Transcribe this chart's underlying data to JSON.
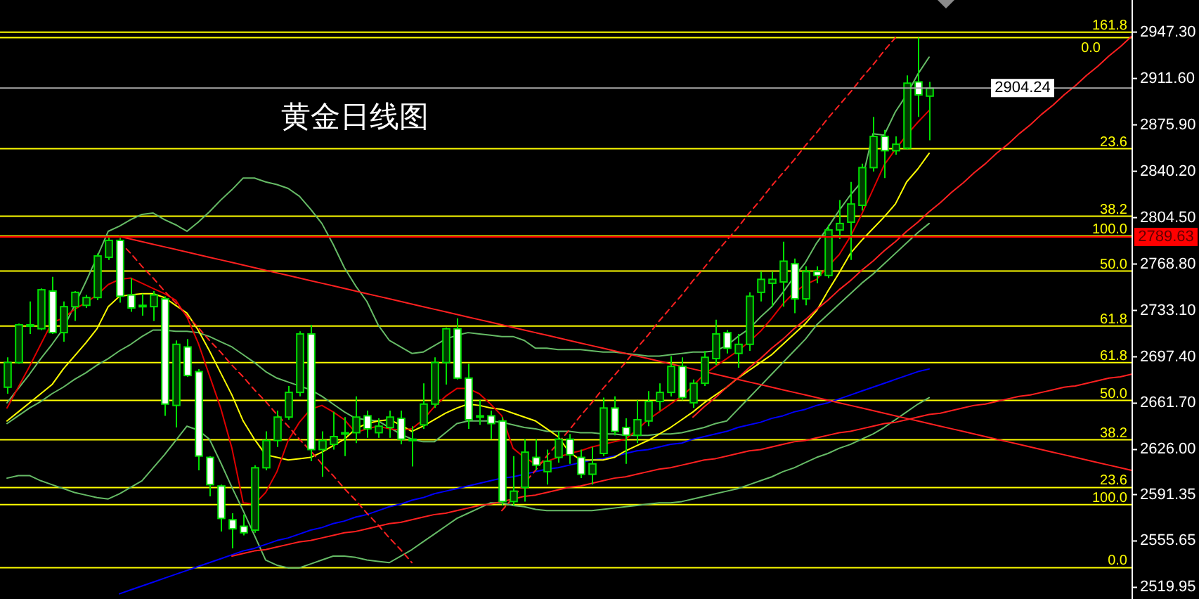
{
  "chart_data": {
    "type": "candlestick",
    "title": "黄金日线图",
    "categories": [
      null,
      null,
      null,
      null,
      null,
      null,
      null,
      null,
      null,
      null,
      null,
      null,
      null,
      null,
      null,
      null,
      null,
      null,
      null,
      null,
      null,
      null,
      null,
      null,
      null,
      null,
      null,
      null,
      null,
      null,
      null,
      null,
      null,
      null,
      null,
      null,
      null,
      null,
      null,
      null,
      null,
      null,
      null,
      null,
      null,
      null,
      null,
      null,
      null,
      null,
      null,
      null,
      null,
      null,
      null,
      null,
      null,
      null,
      null,
      null,
      null,
      null,
      null,
      null,
      null,
      null,
      null,
      null,
      null,
      null,
      null,
      null,
      null,
      null,
      null,
      null,
      null,
      null,
      null,
      null,
      null,
      null,
      null,
      null,
      null,
      null,
      null,
      null,
      null,
      null,
      null,
      null,
      null,
      null,
      null,
      null,
      null,
      null,
      null,
      null,
      null
    ],
    "ylim": [
      2511,
      2972
    ],
    "yticks": [
      {
        "value": 2947.3,
        "label": "2947.30"
      },
      {
        "value": 2911.6,
        "label": "2911.60"
      },
      {
        "value": 2875.9,
        "label": "2875.90"
      },
      {
        "value": 2840.2,
        "label": "2840.20"
      },
      {
        "value": 2804.5,
        "label": "2804.50"
      },
      {
        "value": 2768.8,
        "label": "2768.80"
      },
      {
        "value": 2733.1,
        "label": "2733.10"
      },
      {
        "value": 2697.4,
        "label": "2697.40"
      },
      {
        "value": 2661.7,
        "label": "2661.70"
      },
      {
        "value": 2626,
        "label": "2626.00"
      },
      {
        "value": 2591.35,
        "label": "2591.35"
      },
      {
        "value": 2555.65,
        "label": "2555.65"
      },
      {
        "value": 2519.95,
        "label": "2519.95"
      }
    ],
    "tick_labels": "y",
    "series": [
      {
        "type": "line",
        "color": "#66bb66",
        "values": [
          2604,
          2606,
          2606,
          2602,
          2599,
          2596,
          2593,
          2591,
          2589,
          2588,
          2592,
          2597,
          2602,
          2612,
          2622,
          2633,
          2644,
          2641,
          2634,
          2616,
          2597,
          2579,
          2560,
          2541,
          2537,
          2535,
          2535,
          2538,
          2541,
          2544,
          2544,
          2543,
          2541,
          2540,
          2539,
          2544,
          2549,
          2555,
          2561,
          2567,
          2573,
          2577,
          2581,
          2585,
          2585,
          2583,
          2582,
          2580,
          2579,
          2579,
          2579,
          2579,
          2579,
          2580,
          2581,
          2582,
          2583,
          2584,
          2585,
          2585,
          2586,
          2588,
          2590,
          2592,
          2594,
          2596,
          2599,
          2602,
          2605,
          2609,
          2612,
          2616,
          2620,
          2623,
          2627,
          2630,
          2634,
          2638,
          2643,
          2649,
          2655,
          2661,
          2666,
          null,
          null,
          null,
          null,
          null,
          null,
          null,
          null,
          null,
          null,
          null,
          null,
          null,
          null,
          null,
          null,
          null,
          null
        ]
      },
      {
        "type": "line",
        "color": "#66bb66",
        "values": [
          2646,
          2652,
          2658,
          2663,
          2669,
          2674,
          2680,
          2685,
          2691,
          2696,
          2702,
          2707,
          2713,
          2718,
          2718,
          2717,
          2717,
          2716,
          2713,
          2709,
          2705,
          2699,
          2693,
          2686,
          2681,
          2678,
          2675,
          2672,
          2667,
          2661,
          2655,
          2650,
          2649,
          2648,
          2643,
          2638,
          2634,
          2632,
          2632,
          2639,
          2646,
          2648,
          2648,
          2648,
          2647,
          2645,
          2643,
          2642,
          2640,
          2640,
          2640,
          2639,
          2639,
          2638,
          2638,
          2637,
          2637,
          2637,
          2638,
          2638,
          2639,
          2641,
          2643,
          2646,
          2648,
          2657,
          2666,
          2675,
          2684,
          2693,
          2702,
          2711,
          2722,
          2730,
          2738,
          2746,
          2754,
          2761,
          2769,
          2777,
          2785,
          2793,
          2800,
          null,
          null,
          null,
          null,
          null,
          null,
          null,
          null,
          null,
          null,
          null,
          null,
          null,
          null,
          null,
          null,
          null,
          null
        ]
      },
      {
        "type": "line",
        "color": "#66bb66",
        "values": [
          2662,
          2673,
          2684,
          2696,
          2707,
          2719,
          2737,
          2755,
          2774,
          2794,
          2798,
          2803,
          2807,
          2808,
          2803,
          2799,
          2794,
          2801,
          2809,
          2818,
          2826,
          2835,
          2835,
          2832,
          2830,
          2827,
          2821,
          2811,
          2800,
          2784,
          2766,
          2752,
          2740,
          2722,
          2710,
          2705,
          2700,
          2701,
          2706,
          2711,
          2714,
          2716,
          2715,
          2714,
          2713,
          2713,
          2710,
          2704,
          2704,
          2703,
          2703,
          2703,
          2702,
          2701,
          2701,
          2700,
          2699,
          2698,
          2698,
          2699,
          2700,
          2701,
          2701,
          2702,
          2706,
          2713,
          2719,
          2728,
          2736,
          2747,
          2759,
          2770,
          2785,
          2797,
          2810,
          2822,
          2832,
          2869,
          2868,
          2886,
          2899,
          2915,
          2928,
          null,
          null,
          null,
          null,
          null,
          null,
          null,
          null,
          null,
          null,
          null,
          null,
          null,
          null,
          null,
          null,
          null,
          null
        ]
      },
      {
        "type": "line",
        "color": "#0000ff",
        "values": [
          null,
          null,
          null,
          null,
          null,
          null,
          null,
          null,
          null,
          null,
          2515,
          2518,
          2521,
          2524,
          2527,
          2530,
          2533,
          2536,
          2539,
          2542,
          2545,
          2548,
          2550,
          2553,
          2556,
          2558,
          2561,
          2564,
          2566,
          2569,
          2571,
          2574,
          2576,
          2579,
          2582,
          2584,
          2587,
          2589,
          2592,
          2594,
          2596,
          2598,
          2600,
          2602,
          2604,
          2605,
          2607,
          2609,
          2611,
          2612,
          2614,
          2616,
          2618,
          2619,
          2621,
          2623,
          2625,
          2626,
          2628,
          2630,
          2631,
          2634,
          2636,
          2638,
          2640,
          2643,
          2645,
          2647,
          2650,
          2652,
          2655,
          2657,
          2660,
          2662,
          2665,
          2668,
          2671,
          2674,
          2677,
          2680,
          2683,
          2686,
          2688,
          null,
          null,
          null,
          null,
          null,
          null,
          null,
          null,
          null,
          null,
          null,
          null,
          null,
          null,
          null,
          null,
          null,
          null
        ]
      },
      {
        "type": "line",
        "color": "#ffff00",
        "values": [
          2648,
          2655,
          2662,
          2669,
          2676,
          2688,
          2698,
          2708,
          2719,
          2736,
          2744,
          2745,
          2746,
          2746,
          2743,
          2737,
          2731,
          2718,
          2702,
          2685,
          2668,
          2648,
          2634,
          2622,
          2620,
          2618,
          2619,
          2620,
          2624,
          2629,
          2634,
          2642,
          2646,
          2648,
          2649,
          2645,
          2640,
          2644,
          2649,
          2654,
          2658,
          2661,
          2660,
          2658,
          2657,
          2654,
          2651,
          2648,
          2642,
          2636,
          2624,
          2618,
          2618,
          2618,
          2620,
          2625,
          2629,
          2633,
          2638,
          2643,
          2649,
          2655,
          2662,
          2668,
          2674,
          2681,
          2687,
          2693,
          2699,
          2707,
          2715,
          2723,
          2733,
          2748,
          2762,
          2777,
          2787,
          2796,
          2805,
          2815,
          2832,
          2842,
          2854,
          null,
          null,
          null,
          null,
          null,
          null,
          null,
          null,
          null,
          null,
          null,
          null,
          null,
          null,
          null,
          null,
          null,
          null
        ]
      },
      {
        "type": "line",
        "color": "#e00000",
        "values": [
          2658,
          2674,
          2690,
          2707,
          2724,
          2727,
          2734,
          2739,
          2745,
          2753,
          2757,
          2758,
          2754,
          2750,
          2746,
          2741,
          2728,
          2708,
          2683,
          2658,
          2627,
          2585,
          2584,
          2593,
          2609,
          2633,
          2647,
          2657,
          2660,
          2655,
          2649,
          2639,
          2642,
          2644,
          2642,
          2641,
          2642,
          2649,
          2659,
          2667,
          2673,
          2673,
          2669,
          2661,
          2652,
          2627,
          2620,
          2615,
          2617,
          2620,
          2623,
          2625,
          2628,
          2630,
          2632,
          2634,
          2641,
          2649,
          2655,
          2661,
          2667,
          2675,
          2684,
          2690,
          2696,
          2702,
          2709,
          2717,
          2727,
          2738,
          2747,
          2753,
          2757,
          2767,
          2776,
          2790,
          2807,
          2826,
          2845,
          2857,
          2868,
          2878,
          2887,
          null,
          null,
          null,
          null,
          null,
          null,
          null,
          null,
          null,
          null,
          null,
          null,
          null,
          null,
          null,
          null,
          null,
          null
        ]
      },
      {
        "type": "line",
        "color": "#ff2020",
        "values": [
          null,
          null,
          null,
          null,
          null,
          null,
          null,
          null,
          null,
          null,
          2790,
          2788,
          2786,
          2784,
          2782,
          2780,
          2778,
          2776,
          2774,
          2772,
          2770,
          2768,
          2766,
          2764,
          2762,
          2760,
          2758,
          2756,
          2754,
          2752,
          2750,
          2748,
          2746,
          2744,
          2742,
          2740,
          2738,
          2736,
          2734,
          2732,
          2730,
          2728,
          2726,
          2724,
          2722,
          2720,
          2718,
          2716,
          2714,
          2712,
          2710,
          2708,
          2706,
          2704,
          2702,
          2700,
          2698,
          2696,
          2694,
          2692,
          2690,
          2688,
          2686,
          2684,
          2682,
          2680,
          2678,
          2676,
          2674,
          2672,
          2670,
          2668,
          2666,
          2664,
          2662,
          2660,
          2658,
          2656,
          2654,
          2652,
          2650,
          2648,
          2646,
          2644,
          2642,
          2640,
          2638,
          2636,
          2634,
          2632,
          2630,
          2628,
          2626,
          2624,
          2622,
          2620,
          2618,
          2616,
          2614,
          2612,
          2610
        ]
      },
      {
        "type": "line",
        "color": "#ff2020",
        "values": [
          null,
          null,
          null,
          null,
          null,
          null,
          null,
          null,
          null,
          null,
          null,
          null,
          null,
          null,
          null,
          null,
          null,
          null,
          null,
          null,
          2544,
          2546,
          2548,
          2549,
          2551,
          2553,
          2555,
          2556,
          2558,
          2560,
          2562,
          2563,
          2565,
          2567,
          2569,
          2570,
          2572,
          2574,
          2576,
          2577,
          2579,
          2581,
          2583,
          2584,
          2586,
          2588,
          2590,
          2591,
          2593,
          2595,
          2597,
          2598,
          2600,
          2602,
          2604,
          2605,
          2607,
          2609,
          2611,
          2612,
          2614,
          2616,
          2618,
          2619,
          2621,
          2623,
          2625,
          2626,
          2628,
          2630,
          2632,
          2633,
          2635,
          2637,
          2639,
          2640,
          2642,
          2644,
          2646,
          2647,
          2649,
          2651,
          2653,
          2654,
          2656,
          2658,
          2660,
          2661,
          2663,
          2665,
          2667,
          2668,
          2670,
          2672,
          2674,
          2675,
          2677,
          2679,
          2681,
          2682,
          2684
        ]
      },
      {
        "type": "line",
        "color": "#ff2020",
        "values": [
          null,
          null,
          null,
          null,
          null,
          null,
          null,
          null,
          null,
          null,
          null,
          null,
          null,
          null,
          null,
          null,
          null,
          null,
          null,
          null,
          null,
          null,
          null,
          null,
          null,
          null,
          null,
          null,
          null,
          null,
          null,
          null,
          null,
          null,
          null,
          null,
          null,
          null,
          null,
          null,
          null,
          null,
          null,
          null,
          null,
          null,
          null,
          null,
          null,
          null,
          null,
          null,
          null,
          null,
          null,
          null,
          null,
          null,
          null,
          null,
          null,
          2651,
          2659,
          2666,
          2674,
          2681,
          2689,
          2696,
          2704,
          2711,
          2719,
          2726,
          2734,
          2741,
          2749,
          2756,
          2764,
          2771,
          2779,
          2786,
          2794,
          2801,
          2809,
          2816,
          2824,
          2831,
          2839,
          2846,
          2854,
          2861,
          2869,
          2876,
          2884,
          2891,
          2899,
          2906,
          2914,
          2921,
          2929,
          2936,
          2944
        ]
      },
      {
        "type": "line",
        "color": "#ff2020",
        "line_style": "dashed",
        "values": [
          null,
          null,
          null,
          null,
          null,
          null,
          null,
          null,
          null,
          null,
          2786,
          2777,
          2767,
          2758,
          2748,
          2739,
          2729,
          2720,
          2710,
          2701,
          2691,
          2682,
          2672,
          2663,
          2653,
          2644,
          2634,
          2625,
          2615,
          2606,
          2596,
          2587,
          2577,
          2568,
          2558,
          2549,
          2539,
          null,
          null,
          null,
          null,
          null,
          null,
          null,
          null,
          null,
          null,
          null,
          null,
          null,
          null,
          null,
          null,
          null,
          null,
          null,
          null,
          null,
          null,
          null,
          null,
          null,
          null,
          null,
          null,
          null,
          null,
          null,
          null,
          null,
          null,
          null,
          null,
          null,
          null,
          null,
          null,
          null,
          null,
          null,
          null,
          null,
          null,
          null,
          null,
          null,
          null,
          null,
          null,
          null,
          null,
          null,
          null,
          null,
          null,
          null,
          null,
          null,
          null,
          null,
          null
        ]
      },
      {
        "type": "line",
        "color": "#ff2020",
        "line_style": "dashed",
        "values": [
          null,
          null,
          null,
          null,
          null,
          null,
          null,
          null,
          null,
          null,
          null,
          null,
          null,
          null,
          null,
          null,
          null,
          null,
          null,
          null,
          null,
          null,
          null,
          null,
          null,
          null,
          null,
          null,
          null,
          null,
          null,
          null,
          null,
          null,
          null,
          null,
          null,
          null,
          null,
          null,
          null,
          null,
          null,
          null,
          2579,
          2589,
          2600,
          2610,
          2621,
          2631,
          2641,
          2652,
          2662,
          2673,
          2683,
          2693,
          2704,
          2714,
          2725,
          2735,
          2745,
          2756,
          2766,
          2777,
          2787,
          2797,
          2808,
          2818,
          2829,
          2839,
          2849,
          2860,
          2870,
          2881,
          2891,
          2901,
          2912,
          2922,
          2933,
          2943,
          null,
          null,
          null,
          null,
          null,
          null,
          null,
          null,
          null,
          null,
          null,
          null,
          null,
          null,
          null,
          null,
          null,
          null,
          null,
          null,
          null
        ]
      },
      {
        "color": "#00e000",
        "ohlc": [
          [
            2674,
            2697,
            2669,
            2693
          ],
          [
            2693,
            2723,
            2692,
            2722
          ],
          [
            2721,
            2740,
            2715,
            2722
          ],
          [
            2719,
            2750,
            2718,
            2749
          ],
          [
            2748,
            2759,
            2715,
            2716
          ],
          [
            2716,
            2740,
            2709,
            2736
          ],
          [
            2736,
            2748,
            2725,
            2747
          ],
          [
            2737,
            2745,
            2735,
            2743
          ],
          [
            2743,
            2777,
            2741,
            2775
          ],
          [
            2774,
            2790,
            2772,
            2787
          ],
          [
            2787,
            2789,
            2739,
            2744
          ],
          [
            2745,
            2758,
            2732,
            2735
          ],
          [
            2737,
            2746,
            2729,
            2736
          ],
          [
            2736,
            2748,
            2725,
            2745
          ],
          [
            2742,
            2744,
            2652,
            2661
          ],
          [
            2660,
            2710,
            2643,
            2707
          ],
          [
            2705,
            2711,
            2682,
            2683
          ],
          [
            2686,
            2688,
            2610,
            2621
          ],
          [
            2620,
            2621,
            2590,
            2599
          ],
          [
            2598,
            2599,
            2563,
            2573
          ],
          [
            2572,
            2577,
            2550,
            2565
          ],
          [
            2567,
            2576,
            2560,
            2562
          ],
          [
            2564,
            2614,
            2562,
            2612
          ],
          [
            2612,
            2640,
            2610,
            2633
          ],
          [
            2633,
            2656,
            2628,
            2651
          ],
          [
            2651,
            2675,
            2649,
            2670
          ],
          [
            2670,
            2717,
            2667,
            2715
          ],
          [
            2715,
            2722,
            2617,
            2626
          ],
          [
            2626,
            2640,
            2605,
            2633
          ],
          [
            2630,
            2655,
            2626,
            2636
          ],
          [
            2638,
            2651,
            2621,
            2639
          ],
          [
            2639,
            2667,
            2631,
            2651
          ],
          [
            2652,
            2656,
            2635,
            2642
          ],
          [
            2639,
            2650,
            2635,
            2644
          ],
          [
            2643,
            2656,
            2635,
            2651
          ],
          [
            2650,
            2656,
            2630,
            2634
          ],
          [
            2634,
            2644,
            2613,
            2633
          ],
          [
            2645,
            2677,
            2642,
            2661
          ],
          [
            2661,
            2697,
            2658,
            2693
          ],
          [
            2693,
            2720,
            2676,
            2719
          ],
          [
            2719,
            2727,
            2680,
            2681
          ],
          [
            2681,
            2692,
            2642,
            2649
          ],
          [
            2652,
            2664,
            2645,
            2651
          ],
          [
            2652,
            2656,
            2634,
            2646
          ],
          [
            2648,
            2651,
            2583,
            2586
          ],
          [
            2586,
            2621,
            2583,
            2594
          ],
          [
            2597,
            2634,
            2586,
            2624
          ],
          [
            2620,
            2634,
            2610,
            2614
          ],
          [
            2609,
            2626,
            2599,
            2617
          ],
          [
            2620,
            2640,
            2616,
            2634
          ],
          [
            2634,
            2638,
            2615,
            2622
          ],
          [
            2620,
            2626,
            2604,
            2607
          ],
          [
            2607,
            2628,
            2599,
            2615
          ],
          [
            2623,
            2666,
            2621,
            2658
          ],
          [
            2658,
            2667,
            2637,
            2640
          ],
          [
            2643,
            2650,
            2615,
            2637
          ],
          [
            2637,
            2664,
            2631,
            2649
          ],
          [
            2648,
            2671,
            2644,
            2663
          ],
          [
            2663,
            2677,
            2656,
            2670
          ],
          [
            2670,
            2698,
            2667,
            2690
          ],
          [
            2690,
            2697,
            2664,
            2666
          ],
          [
            2662,
            2680,
            2658,
            2677
          ],
          [
            2677,
            2702,
            2675,
            2697
          ],
          [
            2696,
            2726,
            2691,
            2715
          ],
          [
            2716,
            2718,
            2700,
            2704
          ],
          [
            2700,
            2715,
            2689,
            2707
          ],
          [
            2707,
            2747,
            2702,
            2744
          ],
          [
            2747,
            2763,
            2740,
            2757
          ],
          [
            2754,
            2763,
            2736,
            2757
          ],
          [
            2755,
            2786,
            2736,
            2771
          ],
          [
            2769,
            2773,
            2731,
            2742
          ],
          [
            2742,
            2767,
            2737,
            2763
          ],
          [
            2763,
            2767,
            2754,
            2760
          ],
          [
            2760,
            2799,
            2758,
            2795
          ],
          [
            2795,
            2818,
            2788,
            2800
          ],
          [
            2801,
            2832,
            2772,
            2815
          ],
          [
            2814,
            2846,
            2810,
            2843
          ],
          [
            2843,
            2882,
            2840,
            2867
          ],
          [
            2867,
            2872,
            2835,
            2856
          ],
          [
            2856,
            2867,
            2853,
            2861
          ],
          [
            2858,
            2914,
            2857,
            2908
          ],
          [
            2909,
            2943,
            2882,
            2899
          ],
          [
            2898,
            2909,
            2864,
            2904
          ],
          null,
          null,
          null,
          null,
          null,
          null,
          null,
          null,
          null,
          null,
          null,
          null,
          null,
          null,
          null,
          null,
          null,
          null
        ]
      }
    ],
    "ref_lines": [
      {
        "axis": "y",
        "value": 2947.3,
        "color": "#ffff00"
      },
      {
        "axis": "y",
        "value": 2943.0,
        "color": "#ffff00"
      },
      {
        "axis": "y",
        "value": 2857.5,
        "color": "#ffff00"
      },
      {
        "axis": "y",
        "value": 2805.6,
        "color": "#ffff00"
      },
      {
        "axis": "y",
        "value": 2790.4,
        "color": "#ffff00"
      },
      {
        "axis": "y",
        "value": 2763.4,
        "color": "#ffff00"
      },
      {
        "axis": "y",
        "value": 2721.1,
        "color": "#ffff00"
      },
      {
        "axis": "y",
        "value": 2693.0,
        "color": "#ffff00"
      },
      {
        "axis": "y",
        "value": 2663.8,
        "color": "#ffff00"
      },
      {
        "axis": "y",
        "value": 2633.5,
        "color": "#ffff00"
      },
      {
        "axis": "y",
        "value": 2596.8,
        "color": "#ffff00"
      },
      {
        "axis": "y",
        "value": 2583.6,
        "color": "#ffff00"
      },
      {
        "axis": "y",
        "value": 2535.1,
        "color": "#ffff00"
      },
      {
        "axis": "y",
        "value": 2904.24,
        "label": "2904.24",
        "color": "#a8a8a8"
      },
      {
        "axis": "y",
        "value": 2789.63,
        "label": "2789.63",
        "color": "#ff0000"
      }
    ],
    "annotations": [
      {
        "text": "161.8",
        "y": 2947.3
      },
      {
        "text": "0.0",
        "y": 2943.0
      },
      {
        "text": "23.6",
        "y": 2857.5
      },
      {
        "text": "38.2",
        "y": 2805.6
      },
      {
        "text": "100.0",
        "y": 2790.4
      },
      {
        "text": "50.0",
        "y": 2763.4
      },
      {
        "text": "61.8",
        "y": 2721.1
      },
      {
        "text": "61.8",
        "y": 2693.0
      },
      {
        "text": "50.0",
        "y": 2663.8
      },
      {
        "text": "38.2",
        "y": 2633.5
      },
      {
        "text": "23.6",
        "y": 2596.8
      },
      {
        "text": "100.0",
        "y": 2583.6
      },
      {
        "text": "0.0",
        "y": 2535.1
      }
    ]
  }
}
